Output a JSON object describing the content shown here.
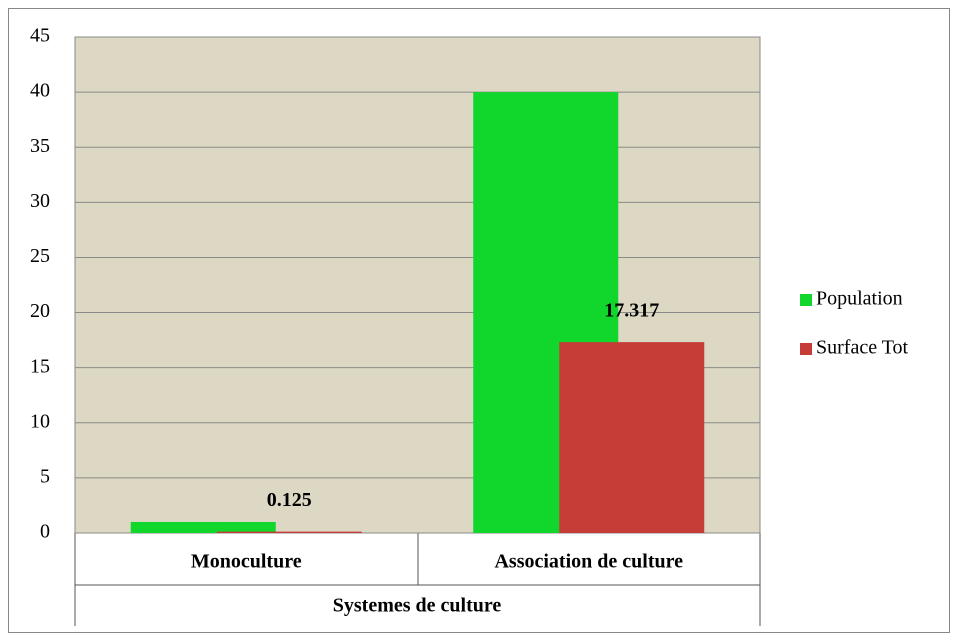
{
  "chart_data": {
    "type": "bar",
    "categories": [
      "Monoculture",
      "Association de culture"
    ],
    "x_label": "Systemes de culture",
    "series": [
      {
        "name": "Population",
        "color": "#11d62b",
        "values": [
          1,
          40
        ]
      },
      {
        "name": "Surface Tot",
        "color": "#c63c37",
        "values": [
          0.125,
          17.317
        ],
        "data_labels": true
      }
    ],
    "ylim": [
      0,
      45
    ],
    "yticks": [
      0,
      5,
      10,
      15,
      20,
      25,
      30,
      35,
      40,
      45
    ],
    "grid": true,
    "legend": "right"
  }
}
